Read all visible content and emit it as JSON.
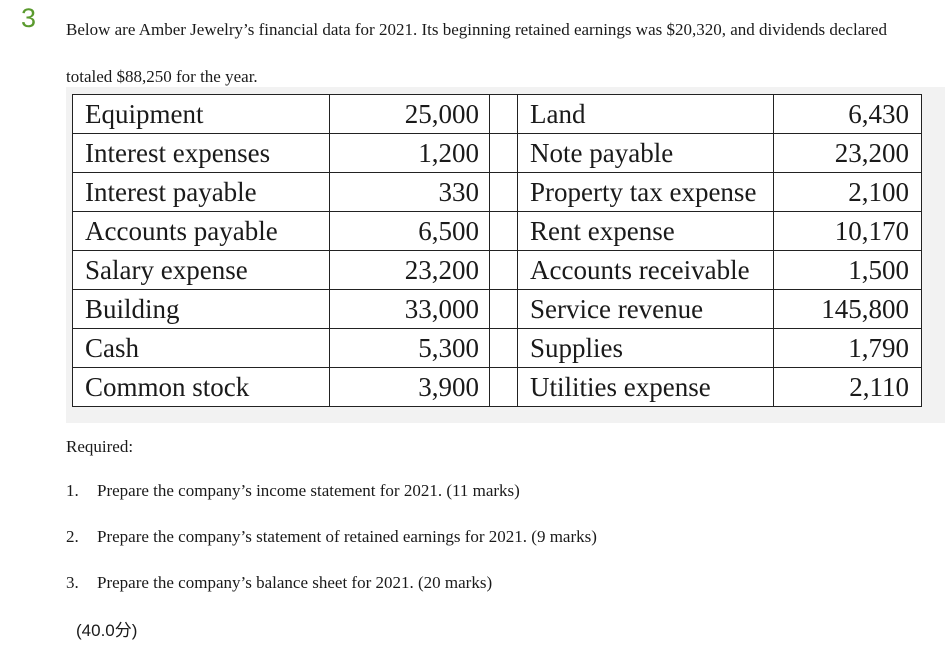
{
  "question": {
    "number": "3",
    "intro": "Below are Amber Jewelry’s financial data for 2021. Its beginning retained earnings was $20,320, and dividends declared totaled $88,250 for the year."
  },
  "table": {
    "rows": [
      {
        "left_name": "Equipment",
        "left_value": "25,000",
        "right_name": "Land",
        "right_value": "6,430"
      },
      {
        "left_name": "Interest expenses",
        "left_value": "1,200",
        "right_name": "Note payable",
        "right_value": "23,200"
      },
      {
        "left_name": "Interest payable",
        "left_value": "330",
        "right_name": "Property tax expense",
        "right_value": "2,100"
      },
      {
        "left_name": "Accounts payable",
        "left_value": "6,500",
        "right_name": "Rent expense",
        "right_value": "10,170"
      },
      {
        "left_name": "Salary expense",
        "left_value": "23,200",
        "right_name": "Accounts receivable",
        "right_value": "1,500"
      },
      {
        "left_name": "Building",
        "left_value": "33,000",
        "right_name": "Service revenue",
        "right_value": "145,800"
      },
      {
        "left_name": "Cash",
        "left_value": "5,300",
        "right_name": "Supplies",
        "right_value": "1,790"
      },
      {
        "left_name": "Common stock",
        "left_value": "3,900",
        "right_name": "Utilities expense",
        "right_value": "2,110"
      }
    ]
  },
  "required": {
    "label": "Required:",
    "items": [
      {
        "num": "1.",
        "text": "Prepare the company’s income statement for 2021. (11 marks)"
      },
      {
        "num": "2.",
        "text": "Prepare the company’s statement of retained earnings for 2021. (9 marks)"
      },
      {
        "num": "3.",
        "text": "Prepare the company’s balance sheet for 2021. (20 marks)"
      }
    ]
  },
  "marks": "(40.0分)",
  "colors": {
    "question_number": "#5a9a2e",
    "table_border": "#222222",
    "table_backdrop": "#f2f2f2"
  }
}
